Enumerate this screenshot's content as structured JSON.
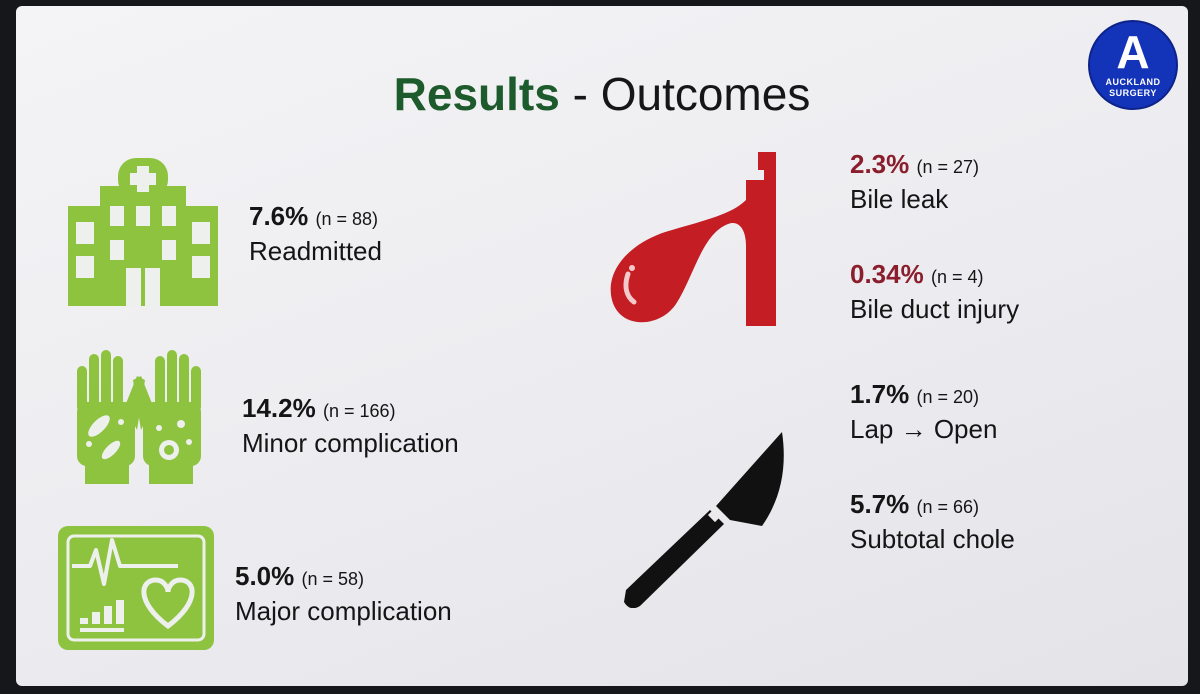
{
  "title": {
    "strong": "Results",
    "rest": " - Outcomes"
  },
  "logo": {
    "letter": "A",
    "line1": "AUCKLAND",
    "line2": "SURGERY"
  },
  "left_stats": [
    {
      "pct": "7.6%",
      "n": "(n = 88)",
      "label": "Readmitted",
      "icon": "hospital-icon"
    },
    {
      "pct": "14.2%",
      "n": "(n = 166)",
      "label": "Minor complication",
      "icon": "hands-germs-icon"
    },
    {
      "pct": "5.0%",
      "n": "(n = 58)",
      "label": "Major complication",
      "icon": "heart-monitor-icon"
    }
  ],
  "right_stats": [
    {
      "pct": "2.3%",
      "n": "(n = 27)",
      "label": "Bile leak"
    },
    {
      "pct": "0.34%",
      "n": "(n = 4)",
      "label": "Bile duct injury"
    },
    {
      "pct": "1.7%",
      "n": "(n = 20)",
      "label": "Lap → Open"
    },
    {
      "pct": "5.7%",
      "n": "(n = 66)",
      "label": "Subtotal chole"
    }
  ],
  "icons": {
    "gallbladder": "gallbladder-icon",
    "scalpel": "scalpel-icon"
  },
  "colors": {
    "green_icon": "#8dc33f",
    "green_title": "#1d5a2c",
    "red_pct": "#8b1e2c",
    "gallbladder_red": "#c41d24",
    "logo_blue": "#1333b9"
  }
}
